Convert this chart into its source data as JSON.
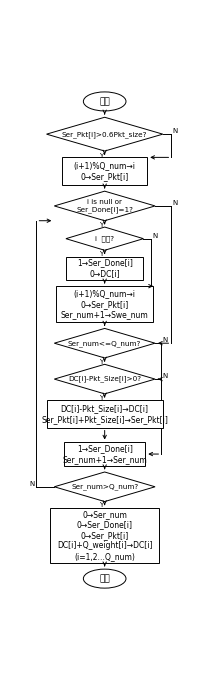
{
  "background_color": "#ffffff",
  "line_color": "#000000",
  "text_color": "#000000",
  "font_size": 5.5,
  "nodes": {
    "start": {
      "text": "开始",
      "type": "oval"
    },
    "d1": {
      "text": "Ser_Pkt[i]>0.6Pkt_size?",
      "type": "diamond"
    },
    "b1": {
      "text": "(i+1)%Q_num→i\n0→Ser_Pkt[i]",
      "type": "rect"
    },
    "d2": {
      "text": "i is null or\nSer_Done[i]=1?",
      "type": "diamond"
    },
    "d3": {
      "text": "i  为空?",
      "type": "diamond"
    },
    "b2": {
      "text": "1→Ser_Done[i]\n0→DC[i]",
      "type": "rect"
    },
    "b3": {
      "text": "(i+1)%Q_num→i\n0→Ser_Pkt[i]\nSer_num+1→Swe_num",
      "type": "rect"
    },
    "d4": {
      "text": "Ser_num<=Q_num?",
      "type": "diamond"
    },
    "d5": {
      "text": "DC[i]-Pkt_Size[i]>0?",
      "type": "diamond"
    },
    "b4": {
      "text": "DC[i]-Pkt_Size[i]→DC[i]\nSer_Pkt[i]+Pkt_Size[i]→Ser_Pkt[i]",
      "type": "rect"
    },
    "b5": {
      "text": "1→Ser_Done[i]\nSer_num+1→Ser_num",
      "type": "rect"
    },
    "d6": {
      "text": "Ser_num>Q_num?",
      "type": "diamond"
    },
    "b6": {
      "text": "0→Ser_num\n0→Ser_Done[i]\n0→Ser_Pkt[i]\nDC[i]+Q_weight[i]→DC[i]\n(i=1,2…Q_num)",
      "type": "rect"
    },
    "end": {
      "text": "结束",
      "type": "oval"
    }
  }
}
